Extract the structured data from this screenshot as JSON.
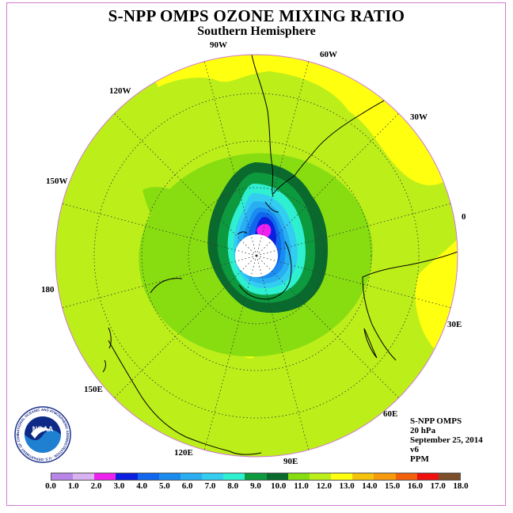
{
  "title": "S-NPP OMPS OZONE MIXING RATIO",
  "subtitle": "Southern Hemisphere",
  "longitude_labels": [
    {
      "key": "lon-90w",
      "text": "90W"
    },
    {
      "key": "lon-60w",
      "text": "60W"
    },
    {
      "key": "lon-120w",
      "text": "120W"
    },
    {
      "key": "lon-30w",
      "text": "30W"
    },
    {
      "key": "lon-150w",
      "text": "150W"
    },
    {
      "key": "lon-0",
      "text": "0"
    },
    {
      "key": "lon-180",
      "text": "180"
    },
    {
      "key": "lon-30e",
      "text": "30E"
    },
    {
      "key": "lon-150e",
      "text": "150E"
    },
    {
      "key": "lon-60e",
      "text": "60E"
    },
    {
      "key": "lon-120e",
      "text": "120E"
    },
    {
      "key": "lon-90e",
      "text": "90E"
    }
  ],
  "info": {
    "instrument": "S-NPP OMPS",
    "pressure": "20 hPa",
    "date": "September 25, 2014",
    "version": "v6",
    "units": "PPM"
  },
  "logo": {
    "text": "NOAA",
    "ring_text": "NATIONAL OCEANIC AND ATMOSPHERIC ADMINISTRATION · U.S. DEPARTMENT OF COMMERCE",
    "icon": "noaa-logo-icon"
  },
  "colorbar": {
    "ticks": [
      "0.0",
      "1.0",
      "2.0",
      "3.0",
      "4.0",
      "5.0",
      "6.0",
      "7.0",
      "8.0",
      "9.0",
      "10.0",
      "11.0",
      "12.0",
      "13.0",
      "14.0",
      "15.0",
      "16.0",
      "17.0",
      "18.0"
    ],
    "colors": [
      "#b886e8",
      "#d9b2f2",
      "#ee22ee",
      "#0a1fe0",
      "#1166ee",
      "#1a8cf0",
      "#2aaef2",
      "#33cdf2",
      "#2ef0d0",
      "#0d9a3e",
      "#0a6a2e",
      "#88dd11",
      "#bcee1a",
      "#ffff10",
      "#f5c20c",
      "#f79a0c",
      "#f2600c",
      "#ee0f0f",
      "#7d4e2a"
    ]
  },
  "map": {
    "projection": "south polar stereographic",
    "field": "ozone mixing ratio",
    "regions": [
      {
        "name": "outer-field",
        "color": "#bcee1a",
        "level": "11.0-12.0"
      },
      {
        "name": "vortex-edge-green",
        "color": "#88dd11",
        "level": "10.0-11.0"
      },
      {
        "name": "vortex-wall-dark",
        "color": "#0a6a2e",
        "level": "9.0-10.0"
      },
      {
        "name": "vortex-wall-green",
        "color": "#0d9a3e",
        "level": "8.0-9.0"
      },
      {
        "name": "vortex-aqua",
        "color": "#2ef0d0",
        "level": "7.0-8.0"
      },
      {
        "name": "vortex-cyan",
        "color": "#33cdf2",
        "level": "6.0-7.0"
      },
      {
        "name": "vortex-lightblue",
        "color": "#2aaef2",
        "level": "5.0-6.0"
      },
      {
        "name": "vortex-blue",
        "color": "#1a8cf0",
        "level": "4.0-5.0"
      },
      {
        "name": "vortex-deepblue",
        "color": "#1166ee",
        "level": "3.0-4.0"
      },
      {
        "name": "vortex-navy",
        "color": "#0a1fe0",
        "level": "2.0-3.0"
      },
      {
        "name": "vortex-min",
        "color": "#ee22ee",
        "level": "1.0-2.0"
      },
      {
        "name": "yellow-patches",
        "color": "#ffff10",
        "level": "12.0-13.0"
      }
    ],
    "pole_gap_color": "#ffffff"
  }
}
